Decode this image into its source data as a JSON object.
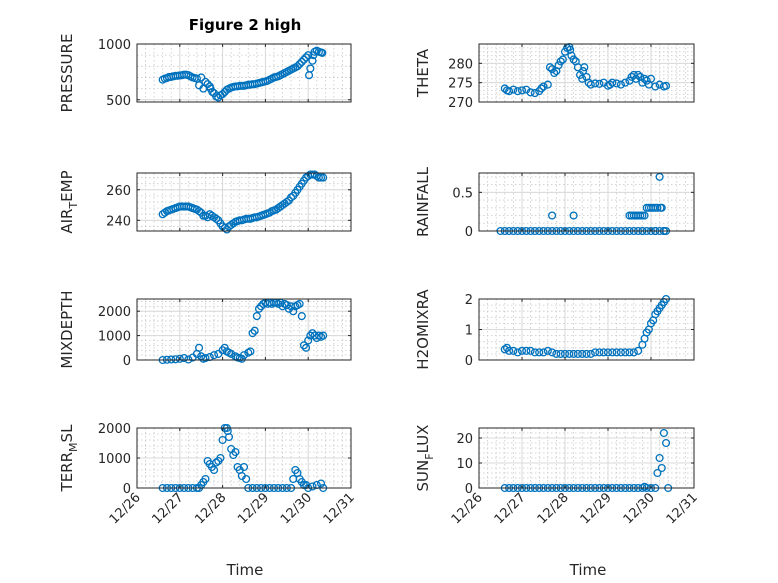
{
  "figure": {
    "title": "Figure 2 high",
    "marker_color": "#0072BD",
    "x_ticks": [
      "12/26",
      "12/27",
      "12/28",
      "12/29",
      "12/30",
      "12/31"
    ],
    "x_label": "Time"
  },
  "chart_data": [
    {
      "type": "scatter",
      "ylabel": "PRESSURE",
      "ylabel_sub": "",
      "ylabel_tail": "",
      "ylim": [
        480,
        1000
      ],
      "yticks": [
        500,
        1000
      ],
      "x": [
        0.6,
        0.65,
        0.7,
        0.75,
        0.8,
        0.85,
        0.9,
        0.95,
        1.0,
        1.05,
        1.1,
        1.15,
        1.2,
        1.25,
        1.3,
        1.35,
        1.4,
        1.45,
        1.5,
        1.55,
        1.6,
        1.65,
        1.7,
        1.72,
        1.76,
        1.8,
        1.85,
        1.9,
        1.95,
        2.0,
        2.05,
        2.1,
        2.15,
        2.2,
        2.25,
        2.3,
        2.35,
        2.4,
        2.45,
        2.5,
        2.55,
        2.6,
        2.65,
        2.7,
        2.75,
        2.8,
        2.85,
        2.9,
        2.95,
        3.0,
        3.05,
        3.1,
        3.15,
        3.2,
        3.25,
        3.3,
        3.35,
        3.4,
        3.45,
        3.5,
        3.55,
        3.6,
        3.65,
        3.7,
        3.75,
        3.8,
        3.85,
        3.9,
        3.95,
        4.0,
        4.02,
        4.05,
        4.1,
        4.12,
        4.15,
        4.2,
        4.25,
        4.3,
        4.33
      ],
      "y": [
        680,
        690,
        695,
        705,
        705,
        710,
        715,
        715,
        718,
        720,
        725,
        725,
        720,
        710,
        700,
        695,
        690,
        630,
        700,
        600,
        660,
        640,
        620,
        600,
        570,
        560,
        530,
        520,
        540,
        550,
        570,
        590,
        600,
        610,
        615,
        620,
        620,
        625,
        625,
        625,
        630,
        635,
        635,
        640,
        640,
        645,
        650,
        655,
        660,
        665,
        670,
        680,
        690,
        700,
        705,
        710,
        720,
        730,
        740,
        750,
        760,
        770,
        780,
        790,
        800,
        820,
        840,
        860,
        880,
        900,
        720,
        780,
        850,
        900,
        930,
        940,
        930,
        925,
        920
      ]
    },
    {
      "type": "scatter",
      "ylabel": "THETA",
      "ylabel_sub": "",
      "ylabel_tail": "",
      "ylim": [
        270,
        285
      ],
      "yticks": [
        270,
        275,
        280
      ],
      "x": [
        0.6,
        0.65,
        0.7,
        0.8,
        0.9,
        1.0,
        1.1,
        1.2,
        1.3,
        1.4,
        1.45,
        1.5,
        1.6,
        1.65,
        1.7,
        1.75,
        1.8,
        1.85,
        1.9,
        1.95,
        2.0,
        2.05,
        2.1,
        2.12,
        2.15,
        2.2,
        2.25,
        2.3,
        2.35,
        2.4,
        2.42,
        2.45,
        2.5,
        2.55,
        2.6,
        2.7,
        2.8,
        2.9,
        3.0,
        3.05,
        3.1,
        3.2,
        3.3,
        3.4,
        3.5,
        3.55,
        3.6,
        3.65,
        3.7,
        3.75,
        3.8,
        3.85,
        3.9,
        3.95,
        4.0,
        4.1,
        4.2,
        4.3,
        4.35
      ],
      "y": [
        273.5,
        273.0,
        272.8,
        273.2,
        272.8,
        273.0,
        273.2,
        272.5,
        272.3,
        272.8,
        273.5,
        274.0,
        274.5,
        279.0,
        278.5,
        277.5,
        278.0,
        279.5,
        280.5,
        281.0,
        283.0,
        284.0,
        284.2,
        283.5,
        282.0,
        281.0,
        280.5,
        279.0,
        277.0,
        276.0,
        278.0,
        279.0,
        276.5,
        275.0,
        274.5,
        274.8,
        274.7,
        275.0,
        274.2,
        274.5,
        275.0,
        274.8,
        274.5,
        275.0,
        275.5,
        276.5,
        277.0,
        276.0,
        277.0,
        276.5,
        275.0,
        276.0,
        275.5,
        274.5,
        276.0,
        274.0,
        274.5,
        274.0,
        274.2
      ]
    },
    {
      "type": "scatter",
      "ylabel": "AIR",
      "ylabel_sub": "T",
      "ylabel_tail": "EMP",
      "ylim": [
        233,
        271
      ],
      "yticks": [
        240,
        260
      ],
      "x": [
        0.6,
        0.65,
        0.7,
        0.75,
        0.8,
        0.85,
        0.9,
        0.95,
        1.0,
        1.05,
        1.1,
        1.15,
        1.2,
        1.25,
        1.3,
        1.35,
        1.4,
        1.45,
        1.5,
        1.55,
        1.6,
        1.65,
        1.7,
        1.75,
        1.8,
        1.85,
        1.9,
        1.95,
        2.0,
        2.05,
        2.1,
        2.15,
        2.2,
        2.25,
        2.3,
        2.35,
        2.4,
        2.45,
        2.5,
        2.55,
        2.6,
        2.65,
        2.7,
        2.75,
        2.8,
        2.85,
        2.9,
        2.95,
        3.0,
        3.05,
        3.1,
        3.15,
        3.2,
        3.25,
        3.3,
        3.35,
        3.4,
        3.45,
        3.5,
        3.55,
        3.6,
        3.65,
        3.7,
        3.75,
        3.8,
        3.85,
        3.9,
        3.95,
        4.0,
        4.05,
        4.1,
        4.15,
        4.2,
        4.25,
        4.3,
        4.35
      ],
      "y": [
        244,
        245,
        246,
        246.5,
        247,
        247.5,
        248,
        248.5,
        249,
        249,
        249,
        249,
        249,
        248.5,
        248,
        247.5,
        247,
        246,
        245,
        243,
        243,
        242,
        244,
        243,
        242,
        241,
        240,
        238,
        236,
        235,
        234,
        236,
        237,
        238,
        239,
        239.5,
        240,
        240,
        240.5,
        241,
        241,
        241,
        241.5,
        242,
        242,
        242.5,
        243,
        243.5,
        244,
        244.5,
        245,
        246,
        246.5,
        247,
        248,
        249,
        250,
        251,
        252,
        253,
        255,
        256,
        258,
        260,
        262,
        264,
        266,
        268,
        269,
        270,
        270,
        270,
        269,
        268,
        268,
        268
      ]
    },
    {
      "type": "scatter",
      "ylabel": "RAINFALL",
      "ylabel_sub": "",
      "ylabel_tail": "",
      "ylim": [
        0,
        0.75
      ],
      "yticks": [
        0,
        0.5
      ],
      "x": [
        0.5,
        0.6,
        0.7,
        0.8,
        0.9,
        1.0,
        1.1,
        1.2,
        1.3,
        1.4,
        1.5,
        1.6,
        1.7,
        1.8,
        1.9,
        2.0,
        2.1,
        2.2,
        2.3,
        2.4,
        2.5,
        2.6,
        2.7,
        2.8,
        2.9,
        3.0,
        3.1,
        3.2,
        3.3,
        3.4,
        3.5,
        3.6,
        3.7,
        3.8,
        3.9,
        4.0,
        4.1,
        4.2,
        4.3,
        4.35,
        1.7,
        2.2,
        3.5,
        3.55,
        3.6,
        3.65,
        3.7,
        3.75,
        3.8,
        3.85,
        3.9,
        3.95,
        4.0,
        4.05,
        4.1,
        4.15,
        4.2,
        4.22,
        4.25,
        4.3,
        3.8,
        4.1
      ],
      "y": [
        0,
        0,
        0,
        0,
        0,
        0,
        0,
        0,
        0,
        0,
        0,
        0,
        0,
        0,
        0,
        0,
        0,
        0,
        0,
        0,
        0,
        0,
        0,
        0,
        0,
        0,
        0,
        0,
        0,
        0,
        0,
        0,
        0,
        0,
        0,
        0,
        0,
        0,
        0,
        0,
        0.2,
        0.2,
        0.2,
        0.2,
        0.2,
        0.2,
        0.2,
        0.2,
        0.2,
        0.2,
        0.3,
        0.3,
        0.3,
        0.3,
        0.3,
        0.3,
        0.7,
        0.3,
        0.3,
        0,
        0,
        0
      ]
    },
    {
      "type": "scatter",
      "ylabel": "MIXDEPTH",
      "ylabel_sub": "",
      "ylabel_tail": "",
      "ylim": [
        0,
        2500
      ],
      "yticks": [
        0,
        1000,
        2000
      ],
      "x": [
        0.6,
        0.7,
        0.8,
        0.9,
        1.0,
        1.1,
        1.2,
        1.3,
        1.4,
        1.45,
        1.5,
        1.55,
        1.6,
        1.7,
        1.8,
        1.9,
        2.0,
        2.05,
        2.1,
        2.15,
        2.2,
        2.3,
        2.35,
        2.4,
        2.45,
        2.5,
        2.6,
        2.65,
        2.7,
        2.75,
        2.8,
        2.85,
        2.9,
        2.95,
        3.0,
        3.05,
        3.1,
        3.15,
        3.2,
        3.25,
        3.3,
        3.35,
        3.4,
        3.45,
        3.5,
        3.55,
        3.6,
        3.65,
        3.7,
        3.75,
        3.8,
        3.85,
        3.9,
        3.95,
        4.0,
        4.05,
        4.1,
        4.15,
        4.2,
        4.25,
        4.3,
        4.35
      ],
      "y": [
        0,
        10,
        20,
        30,
        50,
        80,
        20,
        100,
        250,
        500,
        150,
        50,
        80,
        120,
        200,
        250,
        400,
        500,
        350,
        300,
        250,
        150,
        100,
        80,
        50,
        200,
        300,
        350,
        1100,
        1200,
        1800,
        2100,
        2200,
        2300,
        2350,
        2300,
        2350,
        2300,
        2350,
        2350,
        2300,
        2350,
        2200,
        2300,
        2250,
        2100,
        2200,
        2000,
        2200,
        2250,
        2300,
        1800,
        600,
        500,
        800,
        1000,
        1100,
        1000,
        900,
        1000,
        950,
        1000
      ]
    },
    {
      "type": "scatter",
      "ylabel": "H2OMIXRA",
      "ylabel_sub": "",
      "ylabel_tail": "",
      "ylim": [
        0,
        2
      ],
      "yticks": [
        0,
        1,
        2
      ],
      "x": [
        0.6,
        0.65,
        0.7,
        0.8,
        0.9,
        1.0,
        1.1,
        1.2,
        1.3,
        1.4,
        1.5,
        1.6,
        1.7,
        1.8,
        1.9,
        2.0,
        2.1,
        2.2,
        2.3,
        2.4,
        2.5,
        2.6,
        2.7,
        2.8,
        2.9,
        3.0,
        3.1,
        3.2,
        3.3,
        3.4,
        3.5,
        3.6,
        3.7,
        3.8,
        3.85,
        3.9,
        3.95,
        4.0,
        4.05,
        4.1,
        4.15,
        4.2,
        4.25,
        4.3,
        4.35
      ],
      "y": [
        0.35,
        0.4,
        0.3,
        0.3,
        0.25,
        0.3,
        0.3,
        0.3,
        0.25,
        0.25,
        0.25,
        0.3,
        0.25,
        0.2,
        0.2,
        0.2,
        0.2,
        0.2,
        0.2,
        0.2,
        0.2,
        0.2,
        0.25,
        0.25,
        0.25,
        0.25,
        0.25,
        0.25,
        0.25,
        0.25,
        0.25,
        0.25,
        0.3,
        0.5,
        0.7,
        0.9,
        1.0,
        1.2,
        1.3,
        1.5,
        1.6,
        1.7,
        1.8,
        1.9,
        2.0
      ]
    },
    {
      "type": "scatter",
      "ylabel": "TERR",
      "ylabel_sub": "M",
      "ylabel_tail": "SL",
      "ylim": [
        0,
        2000
      ],
      "yticks": [
        0,
        1000,
        2000
      ],
      "x": [
        0.6,
        0.7,
        0.8,
        0.9,
        1.0,
        1.1,
        1.2,
        1.3,
        1.4,
        1.45,
        1.5,
        1.55,
        1.6,
        1.65,
        1.7,
        1.75,
        1.8,
        1.85,
        1.9,
        1.95,
        2.0,
        2.05,
        2.1,
        2.12,
        2.15,
        2.2,
        2.25,
        2.3,
        2.35,
        2.4,
        2.45,
        2.5,
        2.55,
        2.6,
        2.7,
        2.8,
        2.9,
        3.0,
        3.1,
        3.2,
        3.3,
        3.4,
        3.5,
        3.6,
        3.65,
        3.7,
        3.75,
        3.8,
        3.85,
        3.9,
        3.95,
        4.0,
        4.1,
        4.2,
        4.3,
        4.35
      ],
      "y": [
        0,
        0,
        0,
        0,
        0,
        0,
        0,
        0,
        0,
        0,
        100,
        200,
        300,
        900,
        800,
        700,
        600,
        850,
        900,
        1000,
        1600,
        2000,
        2000,
        1900,
        1700,
        1300,
        1100,
        1200,
        700,
        600,
        400,
        700,
        300,
        0,
        0,
        0,
        0,
        0,
        0,
        0,
        0,
        0,
        0,
        0,
        300,
        600,
        500,
        300,
        200,
        100,
        100,
        0,
        50,
        100,
        150,
        0
      ]
    },
    {
      "type": "scatter",
      "ylabel": "SUN",
      "ylabel_sub": "F",
      "ylabel_tail": "LUX",
      "ylim": [
        0,
        24
      ],
      "yticks": [
        0,
        10,
        20
      ],
      "x": [
        0.6,
        0.7,
        0.8,
        0.9,
        1.0,
        1.1,
        1.2,
        1.3,
        1.4,
        1.5,
        1.6,
        1.7,
        1.8,
        1.9,
        2.0,
        2.1,
        2.2,
        2.3,
        2.4,
        2.5,
        2.6,
        2.7,
        2.8,
        2.9,
        3.0,
        3.1,
        3.2,
        3.3,
        3.4,
        3.5,
        3.6,
        3.7,
        3.8,
        3.85,
        3.9,
        4.0,
        4.1,
        4.15,
        4.2,
        4.25,
        4.3,
        4.35,
        4.4
      ],
      "y": [
        0,
        0,
        0,
        0,
        0,
        0,
        0,
        0,
        0,
        0,
        0,
        0,
        0,
        0,
        0,
        0,
        0,
        0,
        0,
        0,
        0,
        0,
        0,
        0,
        0,
        0,
        0,
        0,
        0,
        0,
        0,
        0,
        0,
        0.5,
        0,
        0,
        0,
        6,
        12,
        8,
        22,
        18,
        0
      ]
    }
  ]
}
